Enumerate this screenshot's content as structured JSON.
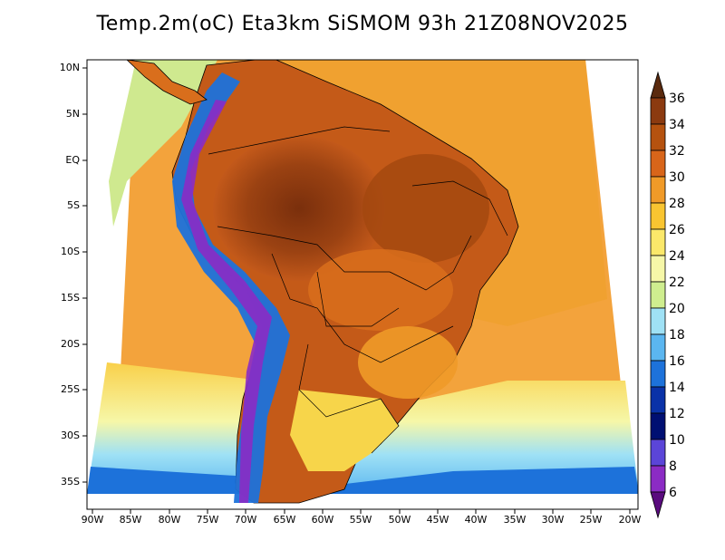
{
  "title": "Temp.2m(oC) Eta3km SiSMOM 93h 21Z08NOV2025",
  "map": {
    "lat_ticks": [
      "10N",
      "5N",
      "EQ",
      "5S",
      "10S",
      "15S",
      "20S",
      "25S",
      "30S",
      "35S"
    ],
    "lat_values": [
      10,
      5,
      0,
      -5,
      -10,
      -15,
      -20,
      -25,
      -30,
      -35
    ],
    "lon_ticks": [
      "90W",
      "85W",
      "80W",
      "75W",
      "70W",
      "65W",
      "60W",
      "55W",
      "50W",
      "45W",
      "40W",
      "35W",
      "30W",
      "25W",
      "20W"
    ],
    "lon_values": [
      -90,
      -85,
      -80,
      -75,
      -70,
      -65,
      -60,
      -55,
      -50,
      -45,
      -40,
      -35,
      -30,
      -25,
      -20
    ]
  },
  "colorbar": {
    "labels": [
      "36",
      "34",
      "32",
      "30",
      "28",
      "26",
      "24",
      "22",
      "20",
      "18",
      "16",
      "14",
      "12",
      "10",
      "8",
      "6"
    ],
    "colors": [
      "#5a2a0e",
      "#8b3a10",
      "#b5520f",
      "#d8651a",
      "#f09a28",
      "#f9c531",
      "#fbe86a",
      "#f6f7a8",
      "#cfee8f",
      "#9fe1f5",
      "#5bb6f0",
      "#1d72da",
      "#0a32a8",
      "#000f72",
      "#5b45d8",
      "#8b2bc4",
      "#5a0b7e"
    ],
    "top_color": "#5a2a0e",
    "bottom_color": "#5a0b7e"
  }
}
